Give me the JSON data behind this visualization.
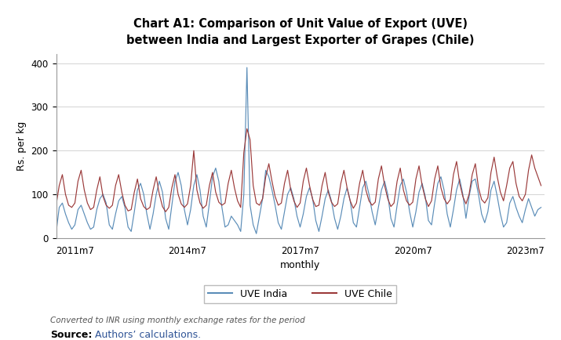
{
  "title_line1": "Chart A1: Comparison of Unit Value of Export (UVE)",
  "title_line2": "between India and Largest Exporter of Grapes (Chile)",
  "ylabel": "Rs. per kg",
  "xlabel": "monthly",
  "note": "Converted to INR using monthly exchange rates for the period",
  "source_bold": "Source:",
  "source_normal": " Authors’ calculations.",
  "color_india": "#5B8DB8",
  "color_chile": "#9B3A3A",
  "legend_india": "UVE India",
  "legend_chile": "UVE Chile",
  "ylim": [
    0,
    420
  ],
  "yticks": [
    0,
    100,
    200,
    300,
    400
  ],
  "india": [
    12,
    70,
    80,
    55,
    35,
    20,
    30,
    65,
    75,
    55,
    35,
    20,
    25,
    65,
    90,
    100,
    80,
    30,
    20,
    55,
    85,
    95,
    70,
    25,
    15,
    60,
    110,
    125,
    100,
    55,
    20,
    55,
    100,
    130,
    105,
    45,
    20,
    75,
    130,
    150,
    120,
    65,
    30,
    65,
    120,
    145,
    110,
    50,
    25,
    80,
    140,
    160,
    130,
    70,
    25,
    30,
    50,
    40,
    30,
    15,
    100,
    390,
    75,
    30,
    10,
    50,
    90,
    155,
    140,
    110,
    75,
    35,
    20,
    60,
    100,
    115,
    90,
    50,
    25,
    55,
    95,
    115,
    90,
    40,
    15,
    50,
    90,
    110,
    85,
    45,
    20,
    50,
    90,
    115,
    85,
    35,
    25,
    70,
    115,
    130,
    100,
    60,
    30,
    70,
    110,
    130,
    100,
    45,
    25,
    75,
    120,
    135,
    105,
    60,
    25,
    60,
    105,
    125,
    95,
    40,
    30,
    80,
    125,
    140,
    110,
    55,
    25,
    65,
    110,
    135,
    100,
    45,
    95,
    130,
    135,
    100,
    55,
    35,
    60,
    110,
    130,
    95,
    55,
    25,
    35,
    80,
    95,
    70,
    50,
    35,
    65,
    90,
    70,
    50,
    65,
    70
  ],
  "chile": [
    75,
    120,
    145,
    100,
    75,
    70,
    80,
    130,
    155,
    110,
    80,
    65,
    70,
    110,
    140,
    95,
    75,
    68,
    75,
    120,
    145,
    105,
    75,
    62,
    65,
    105,
    135,
    90,
    72,
    65,
    70,
    110,
    140,
    100,
    72,
    60,
    70,
    115,
    145,
    100,
    78,
    70,
    78,
    120,
    200,
    110,
    80,
    68,
    75,
    120,
    150,
    105,
    82,
    75,
    80,
    125,
    155,
    115,
    85,
    70,
    195,
    250,
    225,
    120,
    80,
    75,
    90,
    140,
    170,
    130,
    95,
    75,
    80,
    125,
    155,
    110,
    85,
    70,
    80,
    130,
    160,
    120,
    88,
    72,
    75,
    120,
    150,
    105,
    82,
    72,
    78,
    125,
    155,
    115,
    85,
    68,
    80,
    125,
    155,
    110,
    85,
    75,
    82,
    135,
    165,
    120,
    90,
    72,
    80,
    130,
    160,
    110,
    85,
    75,
    82,
    135,
    165,
    120,
    90,
    72,
    85,
    135,
    165,
    115,
    90,
    78,
    88,
    145,
    175,
    125,
    95,
    78,
    100,
    145,
    170,
    115,
    88,
    80,
    92,
    150,
    185,
    140,
    105,
    85,
    120,
    160,
    175,
    125,
    95,
    85,
    100,
    155,
    190,
    160,
    140,
    120
  ]
}
